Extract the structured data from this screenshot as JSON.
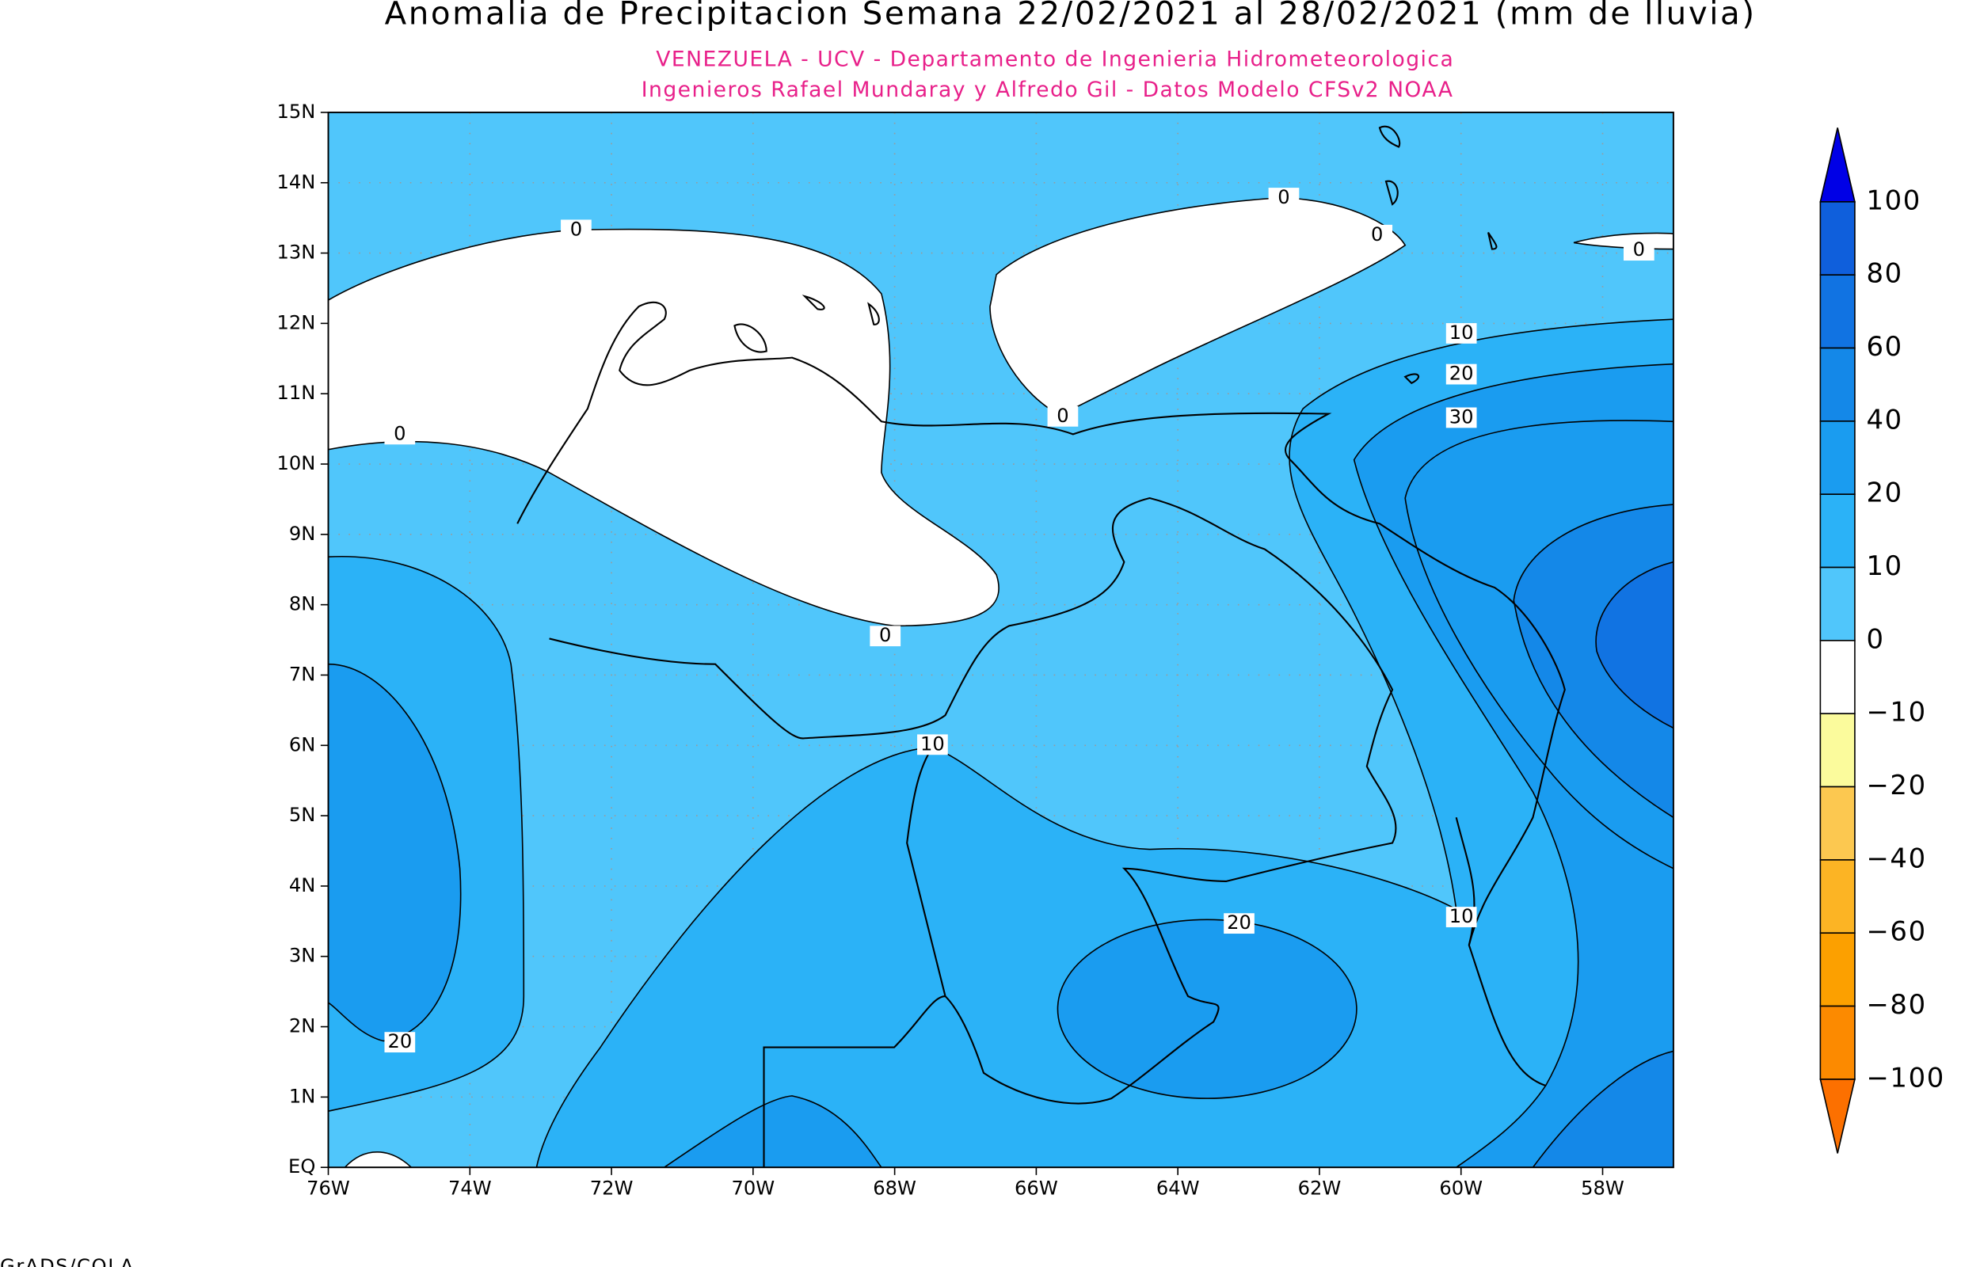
{
  "header": {
    "title": "Anomalia de Precipitacion Semana 22/02/2021 al 28/02/2021 (mm de lluvia)",
    "subtitle_lines": [
      "VENEZUELA - UCV - Departamento de Ingenieria Hidrometeorologica",
      "Ingenieros Rafael Mundaray y Alfredo Gil - Datos Modelo CFSv2 NOAA"
    ]
  },
  "map": {
    "lat_ticks": [
      "15N",
      "14N",
      "13N",
      "12N",
      "11N",
      "10N",
      "9N",
      "8N",
      "7N",
      "6N",
      "5N",
      "4N",
      "3N",
      "2N",
      "1N",
      "EQ"
    ],
    "lon_ticks": [
      "76W",
      "74W",
      "72W",
      "70W",
      "68W",
      "66W",
      "64W",
      "62W",
      "60W",
      "58W"
    ],
    "contour_labels": [
      0,
      0,
      0,
      0,
      0,
      0,
      0,
      10,
      10,
      10,
      20,
      20,
      20,
      30
    ]
  },
  "colorbar": {
    "levels": [
      100,
      80,
      60,
      40,
      20,
      10,
      0,
      {
        "value": -10,
        "label": "−10"
      },
      {
        "value": -20,
        "label": "−20"
      },
      {
        "value": -40,
        "label": "−40"
      },
      {
        "value": -60,
        "label": "−60"
      },
      {
        "value": -80,
        "label": "−80"
      },
      {
        "value": -100,
        "label": "−100"
      }
    ],
    "colors": [
      "#0000e6",
      "#0f5fdc",
      "#1173e2",
      "#1488e8",
      "#1a9cf0",
      "#2bb2f7",
      "#50c6fb",
      "#ffffff",
      "#fbfb9c",
      "#fcc850",
      "#fcb424",
      "#fca000",
      "#fc8a00",
      "#fc7000"
    ]
  },
  "footer": {
    "credit": "GrADS/COLA"
  }
}
